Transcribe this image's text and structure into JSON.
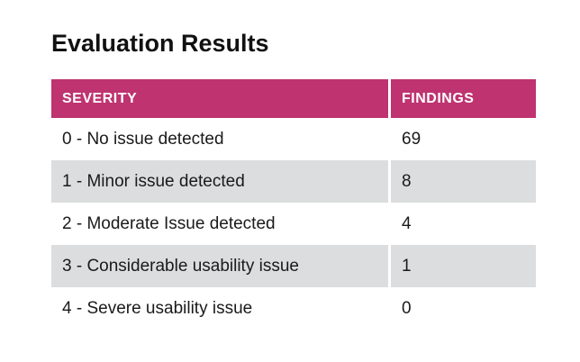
{
  "page": {
    "title": "Evaluation Results"
  },
  "table": {
    "columns": [
      {
        "label": "SEVERITY"
      },
      {
        "label": "FINDINGS"
      }
    ],
    "rows": [
      {
        "severity": "0 - No issue detected",
        "findings": "69"
      },
      {
        "severity": "1 - Minor issue detected",
        "findings": "8"
      },
      {
        "severity": "2 - Moderate Issue detected",
        "findings": "4"
      },
      {
        "severity": "3 - Considerable usability issue",
        "findings": "1"
      },
      {
        "severity": "4 - Severe usability issue",
        "findings": "0"
      }
    ],
    "colors": {
      "header_bg": "#BE3370",
      "header_text": "#FFFFFF",
      "row_bg": "#FFFFFF",
      "row_alt_bg": "#DCDDDE",
      "text": "#1A1A1A"
    }
  }
}
